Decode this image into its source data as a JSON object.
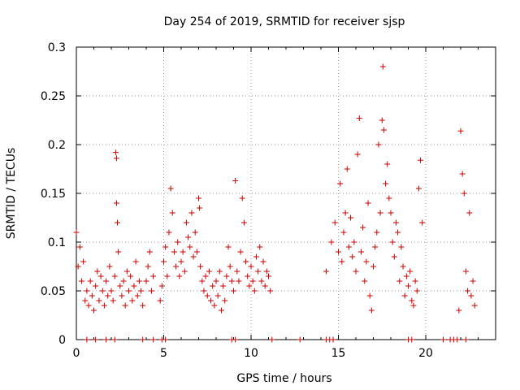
{
  "chart_data": {
    "type": "scatter",
    "title": "Day 254 of 2019, SRMTID for receiver sjsp",
    "xlabel": "GPS time / hours",
    "ylabel": "SRMTID / TECUs",
    "xlim": [
      0,
      24
    ],
    "ylim": [
      0,
      0.3
    ],
    "x_ticks": [
      0,
      5,
      10,
      15,
      20
    ],
    "x_tick_labels": [
      "0",
      "5",
      "10",
      "15",
      "20"
    ],
    "y_ticks": [
      0,
      0.05,
      0.1,
      0.15,
      0.2,
      0.25,
      0.3
    ],
    "y_tick_labels": [
      "0",
      "0.05",
      "0.1",
      "0.15",
      "0.2",
      "0.25",
      "0.3"
    ],
    "grid": true,
    "legend": "none",
    "marker": "+",
    "color": "#cc0000",
    "series": [
      {
        "name": "SRMTID",
        "points": [
          [
            0.0,
            0.11
          ],
          [
            0.1,
            0.075
          ],
          [
            0.2,
            0.095
          ],
          [
            0.3,
            0.06
          ],
          [
            0.4,
            0.08
          ],
          [
            0.5,
            0.04
          ],
          [
            0.6,
            0.05
          ],
          [
            0.7,
            0.035
          ],
          [
            0.8,
            0.06
          ],
          [
            0.9,
            0.045
          ],
          [
            1.0,
            0.03
          ],
          [
            1.1,
            0.055
          ],
          [
            1.2,
            0.07
          ],
          [
            1.3,
            0.04
          ],
          [
            1.4,
            0.065
          ],
          [
            1.5,
            0.05
          ],
          [
            1.6,
            0.035
          ],
          [
            1.7,
            0.06
          ],
          [
            1.8,
            0.045
          ],
          [
            1.9,
            0.075
          ],
          [
            2.0,
            0.05
          ],
          [
            2.1,
            0.04
          ],
          [
            2.2,
            0.065
          ],
          [
            2.25,
            0.192
          ],
          [
            2.3,
            0.186
          ],
          [
            2.3,
            0.14
          ],
          [
            2.35,
            0.12
          ],
          [
            2.4,
            0.09
          ],
          [
            2.5,
            0.055
          ],
          [
            2.6,
            0.045
          ],
          [
            2.7,
            0.06
          ],
          [
            2.8,
            0.035
          ],
          [
            2.9,
            0.07
          ],
          [
            3.0,
            0.05
          ],
          [
            3.1,
            0.065
          ],
          [
            3.2,
            0.04
          ],
          [
            3.3,
            0.055
          ],
          [
            3.4,
            0.08
          ],
          [
            3.5,
            0.045
          ],
          [
            3.6,
            0.06
          ],
          [
            3.7,
            0.05
          ],
          [
            3.8,
            0.035
          ],
          [
            4.0,
            0.06
          ],
          [
            4.1,
            0.075
          ],
          [
            4.2,
            0.09
          ],
          [
            4.3,
            0.05
          ],
          [
            4.4,
            0.065
          ],
          [
            4.8,
            0.04
          ],
          [
            4.9,
            0.055
          ],
          [
            5.0,
            0.08
          ],
          [
            5.1,
            0.095
          ],
          [
            5.2,
            0.065
          ],
          [
            5.3,
            0.11
          ],
          [
            5.4,
            0.155
          ],
          [
            5.5,
            0.13
          ],
          [
            5.6,
            0.09
          ],
          [
            5.7,
            0.075
          ],
          [
            5.8,
            0.1
          ],
          [
            5.9,
            0.065
          ],
          [
            6.0,
            0.08
          ],
          [
            6.1,
            0.09
          ],
          [
            6.2,
            0.07
          ],
          [
            6.3,
            0.12
          ],
          [
            6.4,
            0.105
          ],
          [
            6.5,
            0.095
          ],
          [
            6.6,
            0.13
          ],
          [
            6.7,
            0.085
          ],
          [
            6.8,
            0.11
          ],
          [
            6.9,
            0.09
          ],
          [
            7.0,
            0.145
          ],
          [
            7.05,
            0.135
          ],
          [
            7.1,
            0.075
          ],
          [
            7.2,
            0.06
          ],
          [
            7.3,
            0.05
          ],
          [
            7.4,
            0.065
          ],
          [
            7.5,
            0.045
          ],
          [
            7.6,
            0.07
          ],
          [
            7.7,
            0.04
          ],
          [
            7.8,
            0.055
          ],
          [
            7.9,
            0.035
          ],
          [
            8.0,
            0.06
          ],
          [
            8.1,
            0.045
          ],
          [
            8.2,
            0.07
          ],
          [
            8.3,
            0.03
          ],
          [
            8.4,
            0.055
          ],
          [
            8.5,
            0.04
          ],
          [
            8.6,
            0.065
          ],
          [
            8.7,
            0.095
          ],
          [
            8.8,
            0.075
          ],
          [
            8.9,
            0.06
          ],
          [
            9.0,
            0.05
          ],
          [
            9.1,
            0.163
          ],
          [
            9.2,
            0.07
          ],
          [
            9.3,
            0.06
          ],
          [
            9.4,
            0.09
          ],
          [
            9.5,
            0.145
          ],
          [
            9.6,
            0.12
          ],
          [
            9.7,
            0.08
          ],
          [
            9.8,
            0.065
          ],
          [
            9.9,
            0.055
          ],
          [
            10.0,
            0.075
          ],
          [
            10.1,
            0.06
          ],
          [
            10.2,
            0.05
          ],
          [
            10.3,
            0.085
          ],
          [
            10.4,
            0.07
          ],
          [
            10.5,
            0.095
          ],
          [
            10.6,
            0.06
          ],
          [
            10.7,
            0.08
          ],
          [
            10.8,
            0.055
          ],
          [
            10.9,
            0.07
          ],
          [
            11.0,
            0.065
          ],
          [
            11.1,
            0.05
          ],
          [
            14.3,
            0.07
          ],
          [
            14.6,
            0.1
          ],
          [
            14.8,
            0.12
          ],
          [
            15.0,
            0.09
          ],
          [
            15.1,
            0.16
          ],
          [
            15.2,
            0.08
          ],
          [
            15.3,
            0.11
          ],
          [
            15.4,
            0.13
          ],
          [
            15.5,
            0.175
          ],
          [
            15.6,
            0.095
          ],
          [
            15.7,
            0.125
          ],
          [
            15.8,
            0.085
          ],
          [
            15.9,
            0.1
          ],
          [
            16.0,
            0.07
          ],
          [
            16.1,
            0.19
          ],
          [
            16.2,
            0.227
          ],
          [
            16.3,
            0.09
          ],
          [
            16.4,
            0.115
          ],
          [
            16.5,
            0.06
          ],
          [
            16.6,
            0.08
          ],
          [
            16.7,
            0.14
          ],
          [
            16.8,
            0.045
          ],
          [
            16.9,
            0.03
          ],
          [
            17.0,
            0.075
          ],
          [
            17.1,
            0.095
          ],
          [
            17.2,
            0.11
          ],
          [
            17.3,
            0.2
          ],
          [
            17.4,
            0.13
          ],
          [
            17.5,
            0.225
          ],
          [
            17.55,
            0.28
          ],
          [
            17.6,
            0.215
          ],
          [
            17.7,
            0.16
          ],
          [
            17.8,
            0.18
          ],
          [
            17.9,
            0.145
          ],
          [
            18.0,
            0.13
          ],
          [
            18.1,
            0.1
          ],
          [
            18.2,
            0.085
          ],
          [
            18.3,
            0.12
          ],
          [
            18.4,
            0.11
          ],
          [
            18.5,
            0.06
          ],
          [
            18.6,
            0.095
          ],
          [
            18.7,
            0.075
          ],
          [
            18.8,
            0.045
          ],
          [
            18.9,
            0.065
          ],
          [
            19.0,
            0.055
          ],
          [
            19.1,
            0.07
          ],
          [
            19.2,
            0.04
          ],
          [
            19.3,
            0.035
          ],
          [
            19.4,
            0.06
          ],
          [
            19.5,
            0.05
          ],
          [
            19.6,
            0.155
          ],
          [
            19.7,
            0.184
          ],
          [
            19.8,
            0.12
          ],
          [
            21.9,
            0.03
          ],
          [
            22.0,
            0.214
          ],
          [
            22.1,
            0.17
          ],
          [
            22.2,
            0.15
          ],
          [
            22.3,
            0.07
          ],
          [
            22.4,
            0.05
          ],
          [
            22.5,
            0.13
          ],
          [
            22.6,
            0.045
          ],
          [
            22.7,
            0.06
          ],
          [
            22.8,
            0.035
          ]
        ]
      }
    ],
    "zero_markers_x": [
      0.6,
      1.1,
      1.7,
      2.2,
      3.8,
      4.4,
      4.9,
      5.1,
      8.9,
      9.1,
      11.2,
      12.8,
      14.3,
      14.5,
      14.7,
      19.0,
      19.2,
      21.0,
      21.4,
      21.6,
      21.8,
      22.3
    ]
  }
}
